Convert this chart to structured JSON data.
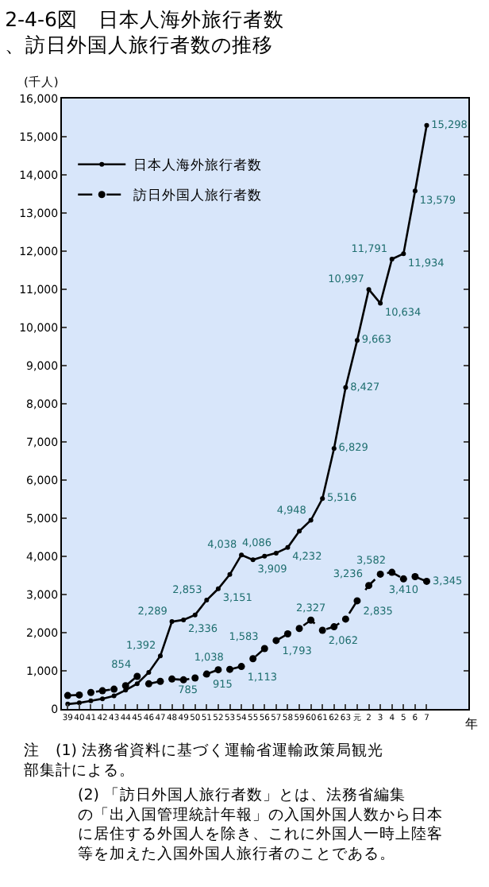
{
  "chart_data": {
    "type": "line",
    "title": "2-4-6図　日本人海外旅行者数、訪日外国人旅行者数の推移",
    "ylabel": "(千人)",
    "xlabel": "年",
    "categories": [
      "39",
      "40",
      "41",
      "42",
      "43",
      "44",
      "45",
      "46",
      "47",
      "48",
      "49",
      "50",
      "51",
      "52",
      "53",
      "54",
      "55",
      "56",
      "57",
      "58",
      "59",
      "60",
      "61",
      "62",
      "63",
      "元",
      "2",
      "3",
      "4",
      "5",
      "6",
      "7"
    ],
    "series": [
      {
        "name": "日本人海外旅行者数",
        "color": "#000000",
        "line_style": "solid",
        "values": [
          128,
          159,
          212,
          268,
          344,
          493,
          663,
          961,
          1392,
          2289,
          2336,
          2466,
          2853,
          3151,
          3525,
          4038,
          3909,
          4006,
          4086,
          4232,
          4659,
          4948,
          5516,
          6829,
          8427,
          9663,
          10997,
          10634,
          11791,
          11934,
          13579,
          15298
        ],
        "value_labels": [
          null,
          null,
          null,
          null,
          null,
          null,
          null,
          null,
          "1,392",
          "2,289",
          "2,336",
          null,
          "2,853",
          "3,151",
          null,
          "4,038",
          "3,909",
          null,
          "4,086",
          "4,232",
          null,
          "4,948",
          "5,516",
          "6,829",
          "8,427",
          "9,663",
          "10,997",
          "10,634",
          "11,791",
          "11,934",
          "13,579",
          "15,298"
        ]
      },
      {
        "name": "訪日外国人旅行者数",
        "color": "#000000",
        "line_style": "dashed",
        "values": [
          353,
          367,
          433,
          477,
          519,
          609,
          854,
          660,
          724,
          785,
          764,
          812,
          915,
          1028,
          1038,
          1113,
          1317,
          1583,
          1793,
          1968,
          2110,
          2327,
          2062,
          2155,
          2356,
          2835,
          3236,
          3533,
          3582,
          3410,
          3468,
          3345
        ],
        "value_labels": [
          null,
          null,
          null,
          null,
          null,
          null,
          "854",
          null,
          null,
          "785",
          null,
          null,
          "915",
          null,
          "1,038",
          "1,113",
          null,
          "1,583",
          "1,793",
          null,
          null,
          "2,327",
          "2,062",
          null,
          null,
          "2,835",
          "3,236",
          null,
          "3,582",
          "3,410",
          null,
          "3,345"
        ]
      }
    ],
    "ylim": [
      0,
      16000
    ],
    "yticks": [
      0,
      {
        "value": 1000,
        "label": "1,000"
      },
      {
        "value": 2000,
        "label": "2,000"
      },
      {
        "value": 3000,
        "label": "3,000"
      },
      {
        "value": 4000,
        "label": "4,000"
      },
      {
        "value": 5000,
        "label": "5,000"
      },
      {
        "value": 6000,
        "label": "6,000"
      },
      {
        "value": 7000,
        "label": "7,000"
      },
      {
        "value": 8000,
        "label": "8,000"
      },
      {
        "value": 9000,
        "label": "9,000"
      },
      {
        "value": 10000,
        "label": "10,000"
      },
      {
        "value": 11000,
        "label": "11,000"
      },
      {
        "value": 12000,
        "label": "12,000"
      },
      {
        "value": 13000,
        "label": "13,000"
      },
      {
        "value": 14000,
        "label": "14,000"
      },
      {
        "value": 15000,
        "label": "15,000"
      },
      {
        "value": 16000,
        "label": "16,000"
      }
    ],
    "grid": false,
    "legend": "top left",
    "marker": "circle",
    "annotations": [
      "注　(1) 法務省資料に基づく運輸省運輸政策局観光部集計による。",
      "(2) 「訪日外国人旅行者数」とは、法務省編集の「出入国管理統計年報」の入国外国人数から日本に居住する外国人を除き、これに外国人一時上陸客等を加えた入国外国人旅行者のことである。"
    ]
  }
}
